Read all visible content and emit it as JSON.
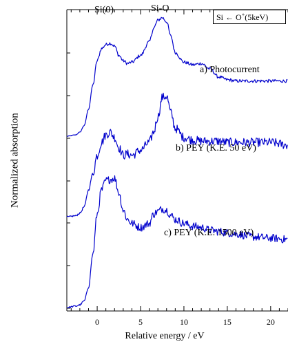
{
  "chart_data": {
    "type": "line",
    "xlabel": "Relative energy / eV",
    "ylabel": "Normalized absorption",
    "xlim": [
      -3.5,
      22
    ],
    "xticks": [
      "0",
      "5",
      "10",
      "15",
      "20"
    ],
    "y_tick_labels_shown": false,
    "legend": {
      "text_prefix": "Si ← O",
      "superscript": "+",
      "text_suffix": "(5keV)",
      "placement": "top-right"
    },
    "peak_annotations": [
      {
        "label": "Si(0)",
        "x": 1.5
      },
      {
        "label": "Si-O",
        "x": 7.5
      }
    ],
    "x": [
      -3.5,
      -2.5,
      -2,
      -1.5,
      -1,
      -0.5,
      0,
      0.5,
      1,
      1.5,
      2,
      2.5,
      3,
      3.5,
      4,
      5,
      6,
      6.5,
      7,
      7.5,
      8,
      8.5,
      9,
      10,
      11,
      12,
      13,
      14,
      15,
      16,
      18,
      20,
      22
    ],
    "series": [
      {
        "name": "a) Photocurrent",
        "color": "#0000cc",
        "noise": 0.012,
        "values": [
          0.02,
          0.03,
          0.05,
          0.1,
          0.22,
          0.4,
          0.58,
          0.67,
          0.7,
          0.71,
          0.69,
          0.62,
          0.58,
          0.56,
          0.57,
          0.62,
          0.72,
          0.82,
          0.88,
          0.9,
          0.87,
          0.76,
          0.64,
          0.57,
          0.55,
          0.56,
          0.52,
          0.46,
          0.44,
          0.43,
          0.43,
          0.43,
          0.43
        ]
      },
      {
        "name": "b) PEY (K.E. 50 eV)",
        "color": "#0000cc",
        "noise": 0.035,
        "values": [
          0.04,
          0.05,
          0.07,
          0.12,
          0.25,
          0.38,
          0.52,
          0.62,
          0.68,
          0.7,
          0.66,
          0.58,
          0.52,
          0.53,
          0.52,
          0.56,
          0.62,
          0.7,
          0.82,
          0.97,
          0.98,
          0.85,
          0.73,
          0.66,
          0.64,
          0.63,
          0.63,
          0.63,
          0.62,
          0.62,
          0.62,
          0.62,
          0.6
        ]
      },
      {
        "name": "c) PEY (K.E. 1500 eV)",
        "color": "#0000cc",
        "noise": 0.03,
        "values": [
          0.0,
          0.01,
          0.02,
          0.05,
          0.15,
          0.4,
          0.7,
          0.88,
          0.95,
          0.96,
          0.97,
          0.86,
          0.73,
          0.66,
          0.63,
          0.6,
          0.63,
          0.7,
          0.72,
          0.74,
          0.73,
          0.69,
          0.66,
          0.63,
          0.61,
          0.6,
          0.58,
          0.57,
          0.56,
          0.55,
          0.53,
          0.52,
          0.51
        ]
      }
    ]
  }
}
